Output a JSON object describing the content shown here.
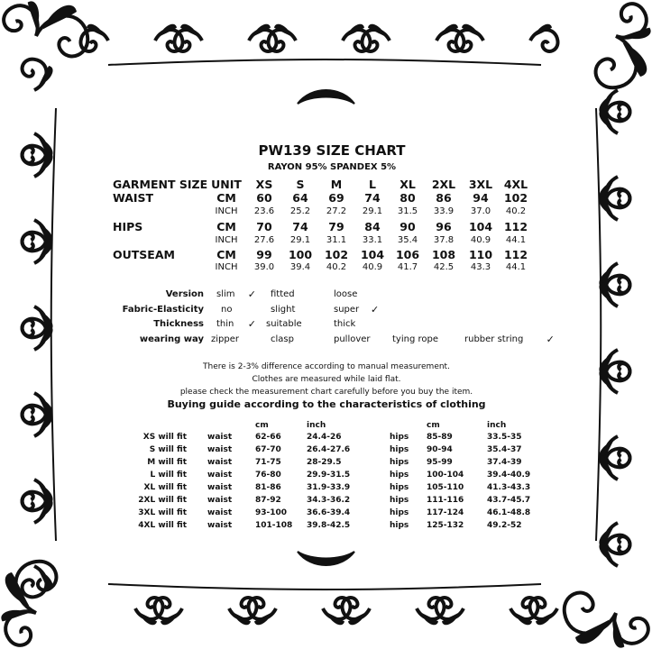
{
  "title": "PW139 SIZE CHART",
  "material": "RAYON 95% SPANDEX 5%",
  "size_table": {
    "header_label": "GARMENT SIZE",
    "unit_label": "UNIT",
    "sizes": [
      "XS",
      "S",
      "M",
      "L",
      "XL",
      "2XL",
      "3XL",
      "4XL"
    ],
    "rows": [
      {
        "label": "WAIST",
        "unit": "CM",
        "values": [
          "60",
          "64",
          "69",
          "74",
          "80",
          "86",
          "94",
          "102"
        ],
        "bold": true
      },
      {
        "label": "",
        "unit": "INCH",
        "values": [
          "23.6",
          "25.2",
          "27.2",
          "29.1",
          "31.5",
          "33.9",
          "37.0",
          "40.2"
        ],
        "bold": false
      },
      {
        "label": "HIPS",
        "unit": "CM",
        "values": [
          "70",
          "74",
          "79",
          "84",
          "90",
          "96",
          "104",
          "112"
        ],
        "bold": true
      },
      {
        "label": "",
        "unit": "INCH",
        "values": [
          "27.6",
          "29.1",
          "31.1",
          "33.1",
          "35.4",
          "37.8",
          "40.9",
          "44.1"
        ],
        "bold": false
      },
      {
        "label": "OUTSEAM",
        "unit": "CM",
        "values": [
          "99",
          "100",
          "102",
          "104",
          "106",
          "108",
          "110",
          "112"
        ],
        "bold": true
      },
      {
        "label": "",
        "unit": "INCH",
        "values": [
          "39.0",
          "39.4",
          "40.2",
          "40.9",
          "41.7",
          "42.5",
          "43.3",
          "44.1"
        ],
        "bold": false
      }
    ]
  },
  "attributes": [
    {
      "label": "Version",
      "options": [
        {
          "text": "slim",
          "checked": true
        },
        {
          "text": "fitted",
          "checked": false
        },
        {
          "text": "loose",
          "checked": false
        }
      ]
    },
    {
      "label": "Fabric-Elasticity",
      "options": [
        {
          "text": "no",
          "checked": false
        },
        {
          "text": "slight",
          "checked": false
        },
        {
          "text": "super",
          "checked": true
        }
      ]
    },
    {
      "label": "Thickness",
      "options": [
        {
          "text": "thin",
          "checked": true
        },
        {
          "text": "suitable",
          "checked": false
        },
        {
          "text": "thick",
          "checked": false
        }
      ]
    },
    {
      "label": "wearing way",
      "options": [
        {
          "text": "zipper",
          "checked": false
        },
        {
          "text": "clasp",
          "checked": false
        },
        {
          "text": "pullover",
          "checked": false
        },
        {
          "text": "tying rope",
          "checked": false
        },
        {
          "text": "rubber string",
          "checked": true
        }
      ]
    }
  ],
  "check_mark": "✓",
  "notes": [
    "There is 2-3% difference according to manual measurement.",
    "Clothes are measured while laid flat.",
    "please check the measurement chart carefully before you buy the item."
  ],
  "guide": {
    "title": "Buying guide according to the characteristics of clothing",
    "headers": {
      "cm": "cm",
      "inch": "inch"
    },
    "rows": [
      {
        "size": "XS will  fit",
        "waist": "waist",
        "waist_cm": "62-66",
        "waist_inch": "24.4-26",
        "hips": "hips",
        "hips_cm": "85-89",
        "hips_inch": "33.5-35"
      },
      {
        "size": "S will  fit",
        "waist": "waist",
        "waist_cm": "67-70",
        "waist_inch": "26.4-27.6",
        "hips": "hips",
        "hips_cm": "90-94",
        "hips_inch": "35.4-37"
      },
      {
        "size": "M will fit",
        "waist": "waist",
        "waist_cm": "71-75",
        "waist_inch": "28-29.5",
        "hips": "hips",
        "hips_cm": "95-99",
        "hips_inch": "37.4-39"
      },
      {
        "size": "L will fit",
        "waist": "waist",
        "waist_cm": "76-80",
        "waist_inch": "29.9-31.5",
        "hips": "hips",
        "hips_cm": "100-104",
        "hips_inch": "39.4-40.9"
      },
      {
        "size": "XL will fit",
        "waist": "waist",
        "waist_cm": "81-86",
        "waist_inch": "31.9-33.9",
        "hips": "hips",
        "hips_cm": "105-110",
        "hips_inch": "41.3-43.3"
      },
      {
        "size": "2XL will fit",
        "waist": "waist",
        "waist_cm": "87-92",
        "waist_inch": "34.3-36.2",
        "hips": "hips",
        "hips_cm": "111-116",
        "hips_inch": "43.7-45.7"
      },
      {
        "size": "3XL will fit",
        "waist": "waist",
        "waist_cm": "93-100",
        "waist_inch": "36.6-39.4",
        "hips": "hips",
        "hips_cm": "117-124",
        "hips_inch": "46.1-48.8"
      },
      {
        "size": "4XL will fit",
        "waist": "waist",
        "waist_cm": "101-108",
        "waist_inch": "39.8-42.5",
        "hips": "hips",
        "hips_cm": "125-132",
        "hips_inch": "49.2-52"
      }
    ]
  },
  "colors": {
    "ink": "#111111",
    "background": "#ffffff"
  }
}
